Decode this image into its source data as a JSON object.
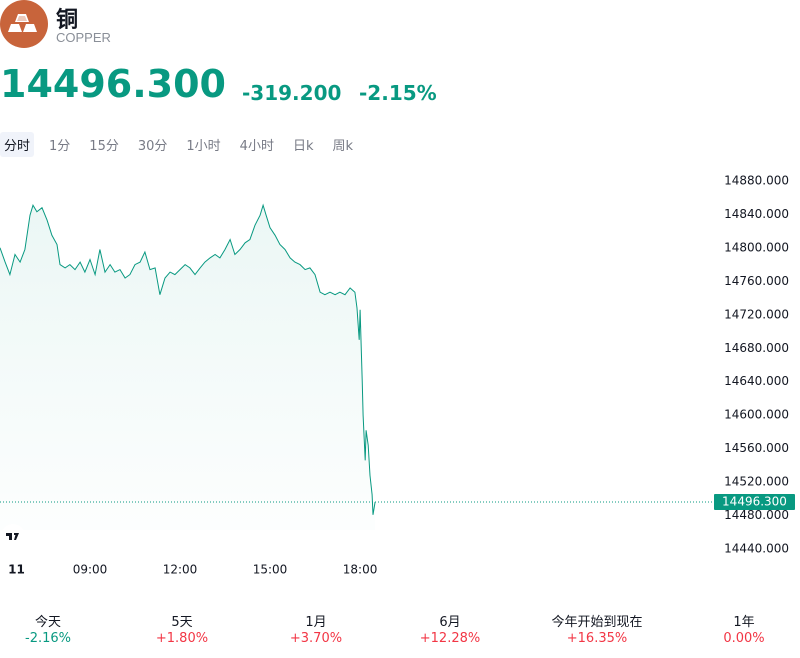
{
  "header": {
    "title": "铜",
    "subtitle": "COPPER",
    "price": "14496.300",
    "change": "-319.200",
    "change_pct": "-2.15%"
  },
  "tabs": {
    "items": [
      "分时",
      "1分",
      "15分",
      "30分",
      "1小时",
      "4小时",
      "日k",
      "周k"
    ],
    "selected": 0
  },
  "chart_data": {
    "type": "line",
    "x": [
      6,
      6.17,
      6.33,
      6.5,
      6.67,
      6.83,
      7,
      7.1,
      7.23,
      7.4,
      7.57,
      7.73,
      7.9,
      8,
      8.17,
      8.33,
      8.5,
      8.67,
      8.83,
      9,
      9.17,
      9.33,
      9.5,
      9.67,
      9.83,
      10,
      10.17,
      10.33,
      10.5,
      10.67,
      10.83,
      11,
      11.17,
      11.33,
      11.5,
      11.67,
      11.83,
      12,
      12.17,
      12.33,
      12.5,
      12.67,
      12.83,
      13,
      13.17,
      13.33,
      13.5,
      13.67,
      13.83,
      14,
      14.17,
      14.33,
      14.5,
      14.67,
      14.77,
      14.87,
      15,
      15.17,
      15.33,
      15.5,
      15.67,
      15.83,
      16,
      16.17,
      16.33,
      16.5,
      16.67,
      16.83,
      17,
      17.17,
      17.33,
      17.5,
      17.67,
      17.83,
      17.9,
      17.97,
      18,
      18.07,
      18.1,
      18.17,
      18.2,
      18.27,
      18.33,
      18.4,
      18.43,
      18.5
    ],
    "series": [
      {
        "color": "#089981",
        "values": [
          14800,
          14783,
          14768,
          14792,
          14783,
          14798,
          14839,
          14851,
          14843,
          14848,
          14833,
          14815,
          14804,
          14780,
          14776,
          14780,
          14774,
          14783,
          14771,
          14786,
          14768,
          14798,
          14771,
          14780,
          14771,
          14774,
          14764,
          14768,
          14780,
          14783,
          14795,
          14774,
          14776,
          14744,
          14764,
          14771,
          14768,
          14774,
          14780,
          14776,
          14768,
          14776,
          14783,
          14788,
          14792,
          14788,
          14798,
          14810,
          14792,
          14798,
          14806,
          14810,
          14827,
          14839,
          14851,
          14839,
          14824,
          14815,
          14804,
          14798,
          14788,
          14783,
          14780,
          14774,
          14776,
          14768,
          14747,
          14744,
          14747,
          14744,
          14747,
          14744,
          14752,
          14747,
          14728,
          14690,
          14726,
          14642,
          14600,
          14546,
          14582,
          14564,
          14528,
          14505,
          14481,
          14496.3
        ]
      }
    ],
    "xlim": [
      6,
      29.83
    ],
    "ylim": [
      14427,
      14893
    ],
    "xticks": [
      {
        "value": 6.27,
        "label": "11"
      },
      {
        "value": 9,
        "label": "09:00"
      },
      {
        "value": 12,
        "label": "12:00"
      },
      {
        "value": 15,
        "label": "15:00"
      },
      {
        "value": 18,
        "label": "18:00"
      }
    ],
    "yticks": [
      {
        "value": 14440,
        "label": "14440.000"
      },
      {
        "value": 14480,
        "label": "14480.000"
      },
      {
        "value": 14520,
        "label": "14520.000"
      },
      {
        "value": 14560,
        "label": "14560.000"
      },
      {
        "value": 14600,
        "label": "14600.000"
      },
      {
        "value": 14640,
        "label": "14640.000"
      },
      {
        "value": 14680,
        "label": "14680.000"
      },
      {
        "value": 14720,
        "label": "14720.000"
      },
      {
        "value": 14760,
        "label": "14760.000"
      },
      {
        "value": 14800,
        "label": "14800.000"
      },
      {
        "value": 14840,
        "label": "14840.000"
      },
      {
        "value": 14880,
        "label": "14880.000"
      }
    ],
    "last_price": {
      "value": 14496.3,
      "label": "14496.300"
    }
  },
  "performance": [
    {
      "label": "今天",
      "value": "-2.16%",
      "color": "#089981"
    },
    {
      "label": "5天",
      "value": "+1.80%",
      "color": "#f23645"
    },
    {
      "label": "1月",
      "value": "+3.70%",
      "color": "#f23645"
    },
    {
      "label": "6月",
      "value": "+12.28%",
      "color": "#f23645"
    },
    {
      "label": "今年开始到现在",
      "value": "+16.35%",
      "color": "#f23645"
    },
    {
      "label": "1年",
      "value": "0.00%",
      "color": "#f23645"
    }
  ]
}
